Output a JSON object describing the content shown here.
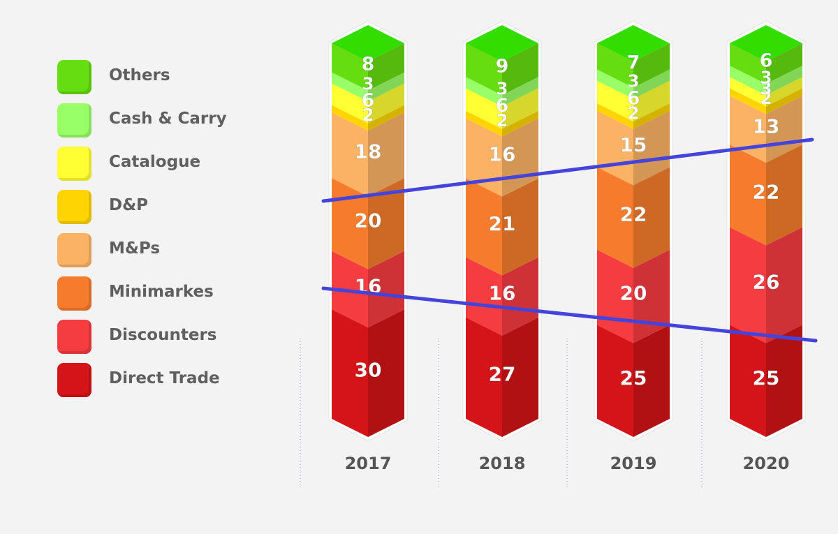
{
  "chart_data": {
    "type": "bar",
    "stacked": true,
    "categories": [
      "2017",
      "2018",
      "2019",
      "2020"
    ],
    "series": [
      {
        "name": "Direct Trade",
        "values": [
          30,
          27,
          25,
          25
        ],
        "color": "#d41418"
      },
      {
        "name": "Discounters",
        "values": [
          16,
          16,
          20,
          26
        ],
        "color": "#f53c40"
      },
      {
        "name": "Minimarkes",
        "values": [
          20,
          21,
          22,
          22
        ],
        "color": "#f47c2c"
      },
      {
        "name": "M&Ps",
        "values": [
          18,
          16,
          15,
          13
        ],
        "color": "#fcb264"
      },
      {
        "name": "D&P",
        "values": [
          2,
          2,
          2,
          2
        ],
        "color": "#ffd400"
      },
      {
        "name": "Catalogue",
        "values": [
          6,
          6,
          6,
          3
        ],
        "color": "#ffff33"
      },
      {
        "name": "Cash & Carry",
        "values": [
          3,
          3,
          3,
          3
        ],
        "color": "#99ff66"
      },
      {
        "name": "Others",
        "values": [
          8,
          9,
          7,
          6
        ],
        "color": "#66dd11"
      }
    ],
    "legend_order": [
      "Others",
      "Cash & Carry",
      "Catalogue",
      "D&P",
      "M&Ps",
      "Minimarkes",
      "Discounters",
      "Direct Trade"
    ],
    "trend_line_color": "#4444dd",
    "legend": "left"
  }
}
